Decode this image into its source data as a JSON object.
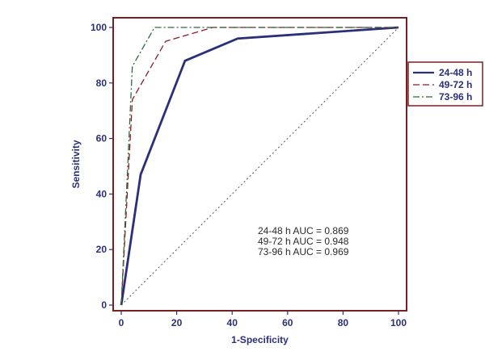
{
  "chart_data": {
    "type": "line",
    "title": "",
    "xlabel": "1-Specificity",
    "ylabel": "Sensitivity",
    "xlim": [
      0,
      100
    ],
    "ylim": [
      0,
      100
    ],
    "x_ticks": [
      0,
      20,
      40,
      60,
      80,
      100
    ],
    "y_ticks": [
      0,
      20,
      40,
      60,
      80,
      100
    ],
    "grid": false,
    "legend_position": "right",
    "frame_color": "#7a1f1f",
    "series": [
      {
        "name": "24-48 h",
        "color": "#2b2f7a",
        "dash": "solid",
        "x": [
          0,
          7,
          23,
          42,
          100
        ],
        "y": [
          0,
          47,
          88,
          96,
          100
        ]
      },
      {
        "name": "49-72 h",
        "color": "#8b1a2a",
        "dash": "dash",
        "x": [
          0,
          4,
          16,
          33,
          100
        ],
        "y": [
          0,
          74,
          95,
          100,
          100
        ]
      },
      {
        "name": "73-96 h",
        "color": "#2e6b3a",
        "dash": "dashdot",
        "x": [
          0,
          4,
          12,
          100
        ],
        "y": [
          0,
          86,
          100,
          100
        ]
      }
    ],
    "reference_line": {
      "x": [
        0,
        100
      ],
      "y": [
        0,
        100
      ],
      "color": "#555555",
      "dash": "dot"
    },
    "annotations": [
      "24-48 h AUC = 0.869",
      "49-72 h AUC = 0.948",
      "73-96 h AUC = 0.969"
    ]
  }
}
